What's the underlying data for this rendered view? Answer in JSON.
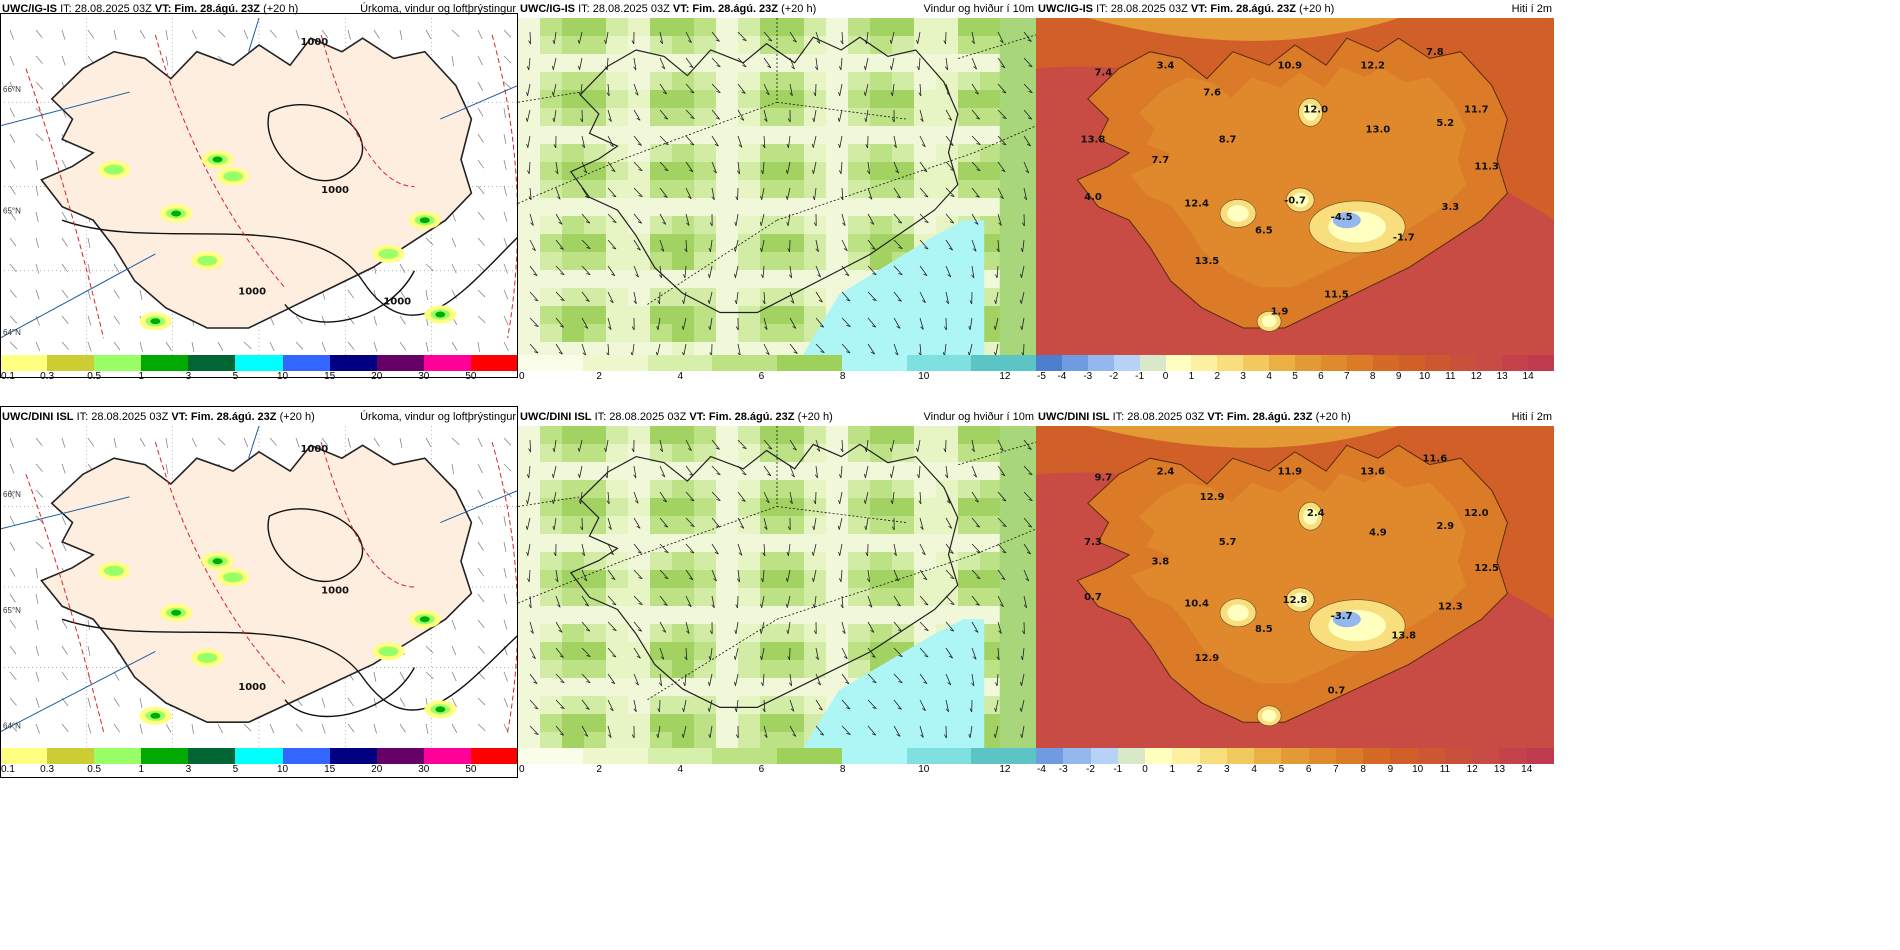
{
  "rows": [
    {
      "model": "UWC/IG-IS",
      "it": "IT: 28.08.2025 03Z",
      "vt_label": "VT:",
      "vt": "Fim. 28.ágú. 23Z",
      "lead": "(+20 h)",
      "panels": [
        {
          "type": "precip",
          "title": "Úrkoma, vindur og loftþrýstingur",
          "contour_labels": [
            "1000",
            "1000",
            "1000",
            "1000"
          ],
          "lat_labels": [
            "66°N",
            "65°N",
            "64°N"
          ]
        },
        {
          "type": "wind",
          "title": "Vindur og hviður í 10m"
        },
        {
          "type": "temp",
          "title": "Hiti í 2m",
          "values": [
            "7.4",
            "3.4",
            "10.9",
            "12.2",
            "7.8",
            "7.6",
            "12.0",
            "11.7",
            "13.8",
            "8.7",
            "13.0",
            "5.2",
            "7.7",
            "11.3",
            "4.0",
            "12.4",
            "-0.7",
            "-4.5",
            "3.3",
            "6.5",
            "-1.7",
            "13.5",
            "11.5",
            "1.9"
          ]
        }
      ],
      "temp_scale": [
        "-5",
        "-4",
        "-3",
        "-2",
        "-1",
        "0",
        "1",
        "2",
        "3",
        "4",
        "5",
        "6",
        "7",
        "8",
        "9",
        "10",
        "11",
        "12",
        "13",
        "14"
      ]
    },
    {
      "model": "UWC/DINI ISL",
      "it": "IT: 28.08.2025 03Z",
      "vt_label": "VT:",
      "vt": "Fim. 28.ágú. 23Z",
      "lead": "(+20 h)",
      "panels": [
        {
          "type": "precip",
          "title": "Úrkoma, vindur og loftþrýstingur",
          "contour_labels": [
            "1000",
            "1000",
            "1000"
          ],
          "lat_labels": [
            "66°N",
            "65°N",
            "64°N"
          ]
        },
        {
          "type": "wind",
          "title": "Vindur og hviður í 10m"
        },
        {
          "type": "temp",
          "title": "Hiti í 2m",
          "values": [
            "9.7",
            "2.4",
            "11.9",
            "13.6",
            "11.6",
            "12.9",
            "2.4",
            "12.0",
            "7.3",
            "5.7",
            "4.9",
            "2.9",
            "3.8",
            "12.5",
            "0.7",
            "10.4",
            "12.8",
            "-3.7",
            "12.3",
            "8.5",
            "13.8",
            "12.9",
            "0.7"
          ]
        }
      ],
      "temp_scale": [
        "-4",
        "-3",
        "-2",
        "-1",
        "0",
        "1",
        "2",
        "3",
        "4",
        "5",
        "6",
        "7",
        "8",
        "9",
        "10",
        "11",
        "12",
        "13",
        "14"
      ]
    }
  ],
  "precip_scale": [
    "0.1",
    "0.3",
    "0.5",
    "1",
    "3",
    "5",
    "10",
    "15",
    "20",
    "30",
    "50"
  ],
  "wind_scale": [
    "0",
    "2",
    "4",
    "6",
    "8",
    "10",
    "12"
  ],
  "colors": {
    "precip": [
      "#ffff80",
      "#cccc33",
      "#99ff66",
      "#00aa00",
      "#006633",
      "#00ffff",
      "#3366ff",
      "#000080",
      "#660066",
      "#ff0099",
      "#ff0000"
    ],
    "wind": [
      "#fafde8",
      "#eef8cc",
      "#d6efaa",
      "#bde284",
      "#9ed15a",
      "#aef5f5",
      "#7fe0e0",
      "#5bc4c4"
    ],
    "temp": [
      "#4d7fcf",
      "#6f9be0",
      "#94b8ee",
      "#b7d2f7",
      "#d8e8c8",
      "#ffffc0",
      "#fdf0a0",
      "#f8de7c",
      "#f2c95c",
      "#ebb044",
      "#e49a34",
      "#df8a2c",
      "#db7b28",
      "#d56a26",
      "#d06028",
      "#cd5730",
      "#c9503a",
      "#c84c44",
      "#c4434a",
      "#bf3a4e"
    ],
    "land": "#fdeee0"
  }
}
